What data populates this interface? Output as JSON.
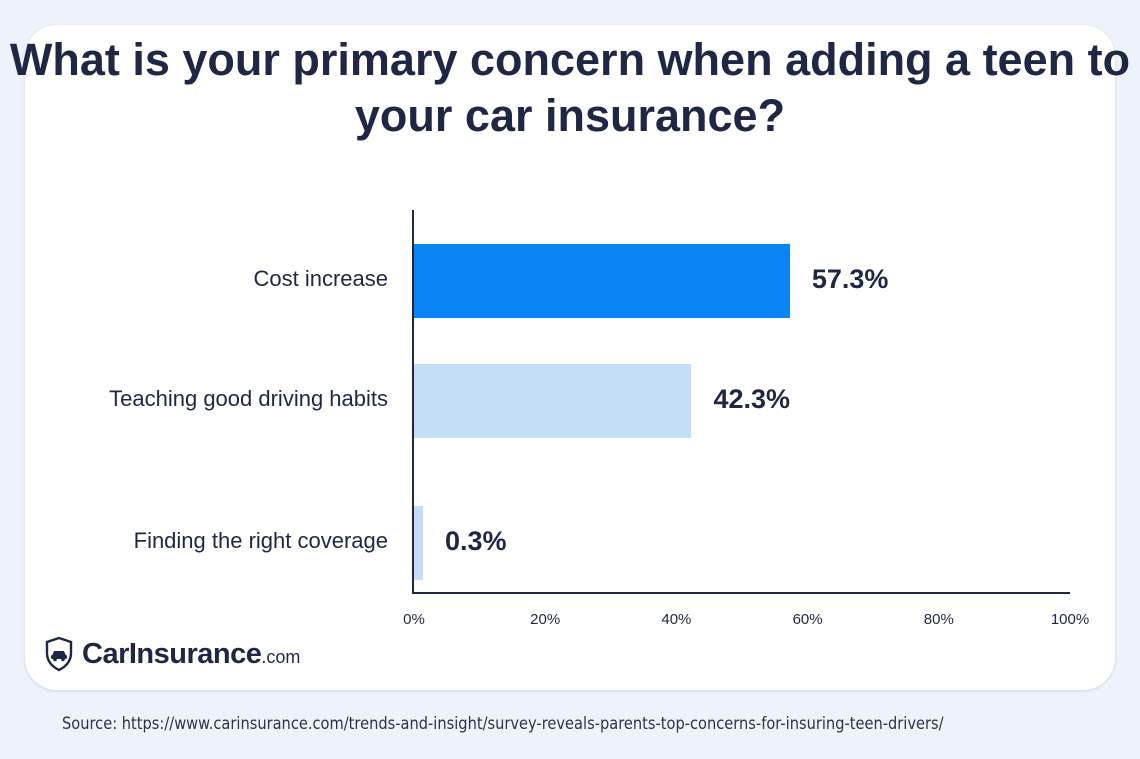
{
  "brand": {
    "name": "CarInsurance",
    "suffix": ".com",
    "icon": "shield-car-icon"
  },
  "source": "Source:  https://www.carinsurance.com/trends-and-insight/survey-reveals-parents-top-concerns-for-insuring-teen-drivers/",
  "chart_data": {
    "type": "bar",
    "orientation": "horizontal",
    "title": "What is your primary concern when adding a teen to your car insurance?",
    "categories": [
      "Cost increase",
      "Teaching good driving habits",
      "Finding the right coverage"
    ],
    "values": [
      57.3,
      42.3,
      0.3
    ],
    "value_labels": [
      "57.3%",
      "42.3%",
      "0.3%"
    ],
    "colors": [
      "#0a84f5",
      "#c4def8",
      "#c4def8"
    ],
    "xlim": [
      0,
      100
    ],
    "xticks": [
      "0%",
      "20%",
      "40%",
      "60%",
      "80%",
      "100%"
    ],
    "xlabel": "",
    "ylabel": "",
    "grid": false
  }
}
